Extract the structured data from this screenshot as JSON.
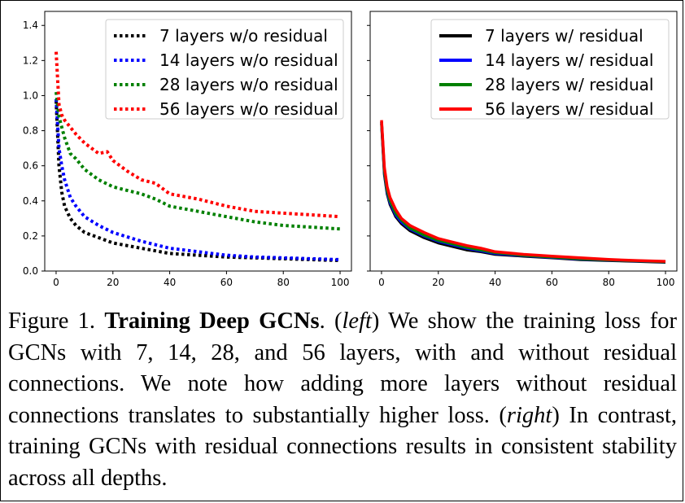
{
  "chart_data": [
    {
      "type": "line",
      "line_style": "dotted",
      "x_ticks": [
        0,
        20,
        40,
        60,
        80,
        100
      ],
      "y_ticks": [
        0.0,
        0.2,
        0.4,
        0.6,
        0.8,
        1.0,
        1.2,
        1.4
      ],
      "y_tick_labels": [
        "0.0",
        "0.2",
        "0.4",
        "0.6",
        "0.8",
        "1.0",
        "1.2",
        "1.4"
      ],
      "xlim": [
        -4,
        104
      ],
      "ylim": [
        0,
        1.48
      ],
      "legend_placement": "top-right",
      "series": [
        {
          "name": "7 layers w/o residual",
          "color": "#000000",
          "x": [
            0,
            1,
            2,
            3,
            5,
            7,
            10,
            15,
            20,
            30,
            40,
            50,
            60,
            70,
            80,
            90,
            100
          ],
          "y": [
            0.97,
            0.6,
            0.45,
            0.37,
            0.3,
            0.26,
            0.22,
            0.19,
            0.16,
            0.13,
            0.1,
            0.09,
            0.08,
            0.075,
            0.07,
            0.065,
            0.06
          ]
        },
        {
          "name": "14 layers w/o residual",
          "color": "#0000ff",
          "x": [
            0,
            1,
            2,
            3,
            5,
            7,
            10,
            15,
            20,
            30,
            40,
            50,
            60,
            70,
            80,
            90,
            100
          ],
          "y": [
            0.98,
            0.7,
            0.6,
            0.52,
            0.42,
            0.37,
            0.31,
            0.26,
            0.22,
            0.17,
            0.13,
            0.11,
            0.09,
            0.08,
            0.075,
            0.07,
            0.065
          ]
        },
        {
          "name": "28 layers w/o residual",
          "color": "#008000",
          "x": [
            0,
            1,
            2,
            3,
            5,
            7,
            10,
            15,
            20,
            25,
            30,
            35,
            40,
            50,
            60,
            70,
            80,
            90,
            100
          ],
          "y": [
            1.02,
            0.88,
            0.82,
            0.76,
            0.67,
            0.64,
            0.58,
            0.52,
            0.48,
            0.46,
            0.44,
            0.41,
            0.37,
            0.34,
            0.31,
            0.28,
            0.26,
            0.25,
            0.24
          ]
        },
        {
          "name": "56 layers w/o residual",
          "color": "#ff0000",
          "x": [
            0,
            1,
            2,
            3,
            5,
            7,
            10,
            15,
            18,
            20,
            25,
            30,
            35,
            40,
            50,
            60,
            70,
            80,
            90,
            100
          ],
          "y": [
            1.25,
            0.95,
            0.89,
            0.86,
            0.82,
            0.78,
            0.73,
            0.67,
            0.68,
            0.63,
            0.57,
            0.52,
            0.5,
            0.44,
            0.41,
            0.37,
            0.34,
            0.33,
            0.32,
            0.31
          ]
        }
      ]
    },
    {
      "type": "line",
      "line_style": "solid",
      "x_ticks": [
        0,
        20,
        40,
        60,
        80,
        100
      ],
      "y_ticks": [
        0.0,
        0.2,
        0.4,
        0.6,
        0.8,
        1.0,
        1.2,
        1.4
      ],
      "xlim": [
        -4,
        104
      ],
      "ylim": [
        0,
        1.48
      ],
      "legend_placement": "top-right",
      "series": [
        {
          "name": "7 layers w/ residual",
          "color": "#000000",
          "x": [
            0,
            1,
            2,
            3,
            5,
            7,
            10,
            15,
            20,
            25,
            30,
            35,
            40,
            50,
            60,
            70,
            80,
            90,
            100
          ],
          "y": [
            0.84,
            0.55,
            0.44,
            0.38,
            0.31,
            0.27,
            0.23,
            0.19,
            0.16,
            0.14,
            0.12,
            0.11,
            0.095,
            0.085,
            0.075,
            0.065,
            0.06,
            0.055,
            0.05
          ]
        },
        {
          "name": "14 layers w/ residual",
          "color": "#0000ff",
          "x": [
            0,
            1,
            2,
            3,
            5,
            7,
            10,
            15,
            20,
            25,
            30,
            35,
            40,
            50,
            60,
            70,
            80,
            90,
            100
          ],
          "y": [
            0.85,
            0.56,
            0.45,
            0.39,
            0.32,
            0.28,
            0.24,
            0.2,
            0.17,
            0.15,
            0.13,
            0.115,
            0.1,
            0.088,
            0.078,
            0.068,
            0.062,
            0.057,
            0.052
          ]
        },
        {
          "name": "28 layers w/ residual",
          "color": "#008000",
          "x": [
            0,
            1,
            2,
            3,
            5,
            7,
            10,
            15,
            20,
            25,
            30,
            35,
            40,
            50,
            60,
            70,
            80,
            90,
            100
          ],
          "y": [
            0.85,
            0.57,
            0.46,
            0.4,
            0.33,
            0.29,
            0.245,
            0.205,
            0.175,
            0.155,
            0.135,
            0.12,
            0.105,
            0.09,
            0.08,
            0.07,
            0.063,
            0.058,
            0.053
          ]
        },
        {
          "name": "56 layers w/ residual",
          "color": "#ff0000",
          "x": [
            0,
            1,
            2,
            3,
            5,
            7,
            10,
            15,
            20,
            25,
            30,
            35,
            40,
            50,
            60,
            70,
            80,
            90,
            100
          ],
          "y": [
            0.86,
            0.59,
            0.48,
            0.42,
            0.35,
            0.3,
            0.26,
            0.22,
            0.185,
            0.165,
            0.145,
            0.13,
            0.11,
            0.095,
            0.085,
            0.075,
            0.066,
            0.06,
            0.055
          ]
        }
      ]
    }
  ],
  "caption": {
    "prefix": "Figure 1. ",
    "bold": "Training Deep GCNs",
    "after_bold": ". (",
    "italic1": "left",
    "middle": ") We show the training loss for GCNs with 7, 14, 28, and 56 layers, with and without residual connections.  We note how adding more layers without residual connections translates to substantially higher loss. (",
    "italic2": "right",
    "end": ") In contrast, training GCNs with residual connections results in consistent stability across all depths."
  }
}
